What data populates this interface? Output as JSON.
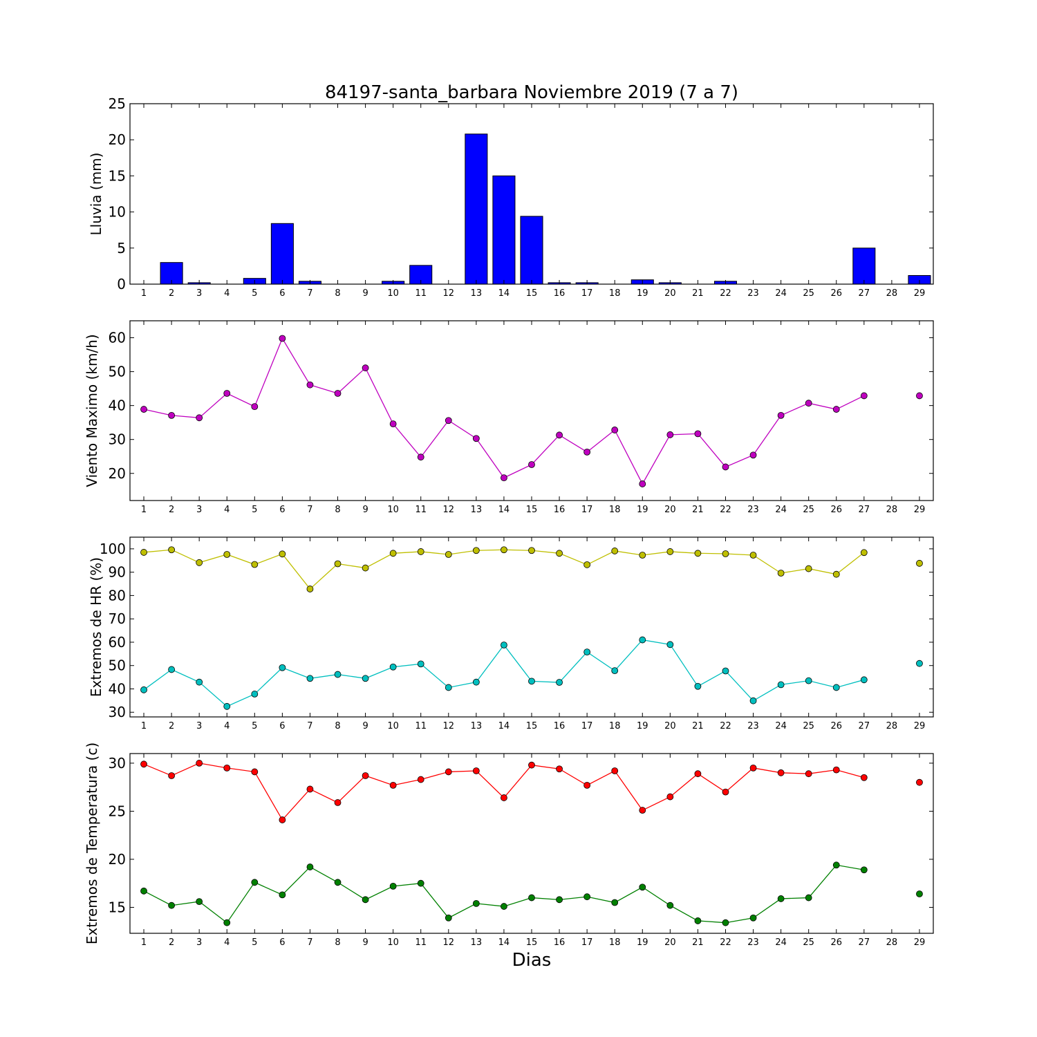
{
  "title": "84197-santa_barbara Noviembre 2019  (7 a 7)",
  "xlabel": "Dias",
  "chart_data": [
    {
      "type": "bar",
      "ylabel": "Lluvia (mm)",
      "ylim": [
        0,
        25
      ],
      "yticks": [
        0,
        5,
        10,
        15,
        20,
        25
      ],
      "categories": [
        "1",
        "2",
        "3",
        "4",
        "5",
        "6",
        "7",
        "8",
        "9",
        "10",
        "11",
        "12",
        "13",
        "14",
        "15",
        "16",
        "17",
        "18",
        "19",
        "20",
        "21",
        "22",
        "23",
        "24",
        "25",
        "26",
        "27",
        "28",
        "29"
      ],
      "values": [
        0,
        3.0,
        0.2,
        0,
        0.8,
        8.4,
        0.4,
        0,
        0,
        0.4,
        2.6,
        0,
        20.8,
        15.0,
        9.4,
        0.2,
        0.2,
        0,
        0.6,
        0.2,
        0,
        0.4,
        0,
        0,
        0,
        0,
        5.0,
        0,
        1.2
      ],
      "color": "#0000ff",
      "grid": false
    },
    {
      "type": "line",
      "ylabel": "Viento Maximo (km/h)",
      "ylim": [
        12,
        65
      ],
      "yticks": [
        20,
        30,
        40,
        50,
        60
      ],
      "x": [
        1,
        2,
        3,
        4,
        5,
        6,
        7,
        8,
        9,
        10,
        11,
        12,
        13,
        14,
        15,
        16,
        17,
        18,
        19,
        20,
        21,
        22,
        23,
        24,
        25,
        26,
        27,
        28,
        29
      ],
      "series": [
        {
          "color": "#bf00bf",
          "values": [
            38.9,
            37.1,
            36.4,
            43.6,
            39.7,
            59.8,
            46.1,
            43.6,
            51.1,
            34.6,
            24.8,
            35.6,
            30.3,
            18.7,
            22.6,
            31.3,
            26.3,
            32.8,
            16.9,
            31.4,
            31.7,
            21.9,
            25.4,
            37.1,
            40.7,
            38.9,
            42.9,
            null,
            42.9
          ]
        }
      ],
      "grid": false
    },
    {
      "type": "line",
      "ylabel": "Extremos de HR (%)",
      "ylim": [
        28,
        105
      ],
      "yticks": [
        30,
        40,
        50,
        60,
        70,
        80,
        90,
        100
      ],
      "x": [
        1,
        2,
        3,
        4,
        5,
        6,
        7,
        8,
        9,
        10,
        11,
        12,
        13,
        14,
        15,
        16,
        17,
        18,
        19,
        20,
        21,
        22,
        23,
        24,
        25,
        26,
        27,
        28,
        29
      ],
      "series": [
        {
          "color": "#bfbf00",
          "values": [
            98.5,
            99.6,
            94.1,
            97.6,
            93.3,
            97.8,
            82.8,
            93.6,
            91.8,
            98.1,
            98.8,
            97.6,
            99.3,
            99.6,
            99.3,
            98.1,
            93.2,
            99.1,
            97.3,
            98.8,
            98.1,
            97.9,
            97.3,
            89.6,
            91.5,
            89.1,
            98.4,
            null,
            93.8
          ]
        },
        {
          "color": "#00bfbf",
          "values": [
            39.6,
            48.3,
            42.9,
            32.5,
            37.8,
            49.1,
            44.5,
            46.2,
            44.5,
            49.4,
            50.7,
            40.6,
            42.9,
            58.8,
            43.3,
            42.8,
            55.8,
            47.8,
            61.0,
            59.0,
            41.1,
            47.7,
            34.9,
            41.8,
            43.5,
            40.6,
            43.9,
            null,
            50.9
          ]
        }
      ],
      "grid": false
    },
    {
      "type": "line",
      "ylabel": "Extremos de Temperatura (c)",
      "ylim": [
        12.3,
        31.0
      ],
      "yticks": [
        15,
        20,
        25,
        30
      ],
      "x": [
        1,
        2,
        3,
        4,
        5,
        6,
        7,
        8,
        9,
        10,
        11,
        12,
        13,
        14,
        15,
        16,
        17,
        18,
        19,
        20,
        21,
        22,
        23,
        24,
        25,
        26,
        27,
        28,
        29
      ],
      "series": [
        {
          "color": "#ff0000",
          "values": [
            29.9,
            28.7,
            30.0,
            29.5,
            29.1,
            24.1,
            27.3,
            25.9,
            28.7,
            27.7,
            28.3,
            29.1,
            29.2,
            26.4,
            29.8,
            29.4,
            27.7,
            29.2,
            25.1,
            26.5,
            28.9,
            27.0,
            29.5,
            29.0,
            28.9,
            29.3,
            28.5,
            null,
            28.0
          ]
        },
        {
          "color": "#008000",
          "values": [
            16.7,
            15.2,
            15.6,
            13.4,
            17.6,
            16.3,
            19.2,
            17.6,
            15.8,
            17.2,
            17.5,
            13.9,
            15.4,
            15.1,
            16.0,
            15.8,
            16.1,
            15.5,
            17.1,
            15.2,
            13.6,
            13.4,
            13.9,
            15.9,
            16.0,
            19.4,
            18.9,
            null,
            16.4
          ]
        }
      ],
      "grid": false
    }
  ]
}
